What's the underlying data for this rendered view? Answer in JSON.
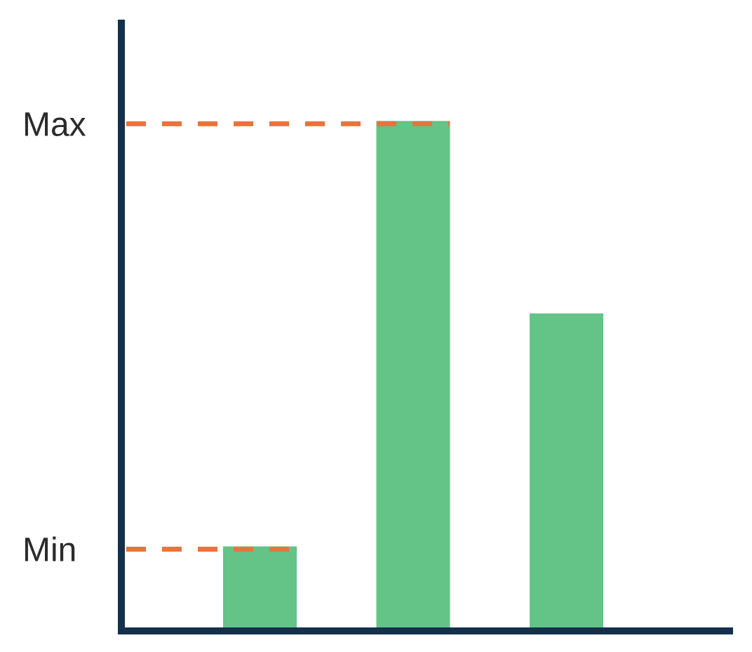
{
  "chart_data": {
    "type": "bar",
    "title": "",
    "xlabel": "",
    "ylabel": "",
    "categories": [
      "",
      "",
      ""
    ],
    "values": [
      0.16,
      1.0,
      0.62
    ],
    "ylim": [
      0,
      1.2
    ],
    "grid": false,
    "reference_lines": [
      {
        "label": "Max",
        "value": 1.0,
        "style": "dashed"
      },
      {
        "label": "Min",
        "value": 0.16,
        "style": "dashed"
      }
    ],
    "colors": {
      "bar": "#64c387",
      "reference_line": "#e8733d",
      "axis": "#15304a"
    }
  }
}
